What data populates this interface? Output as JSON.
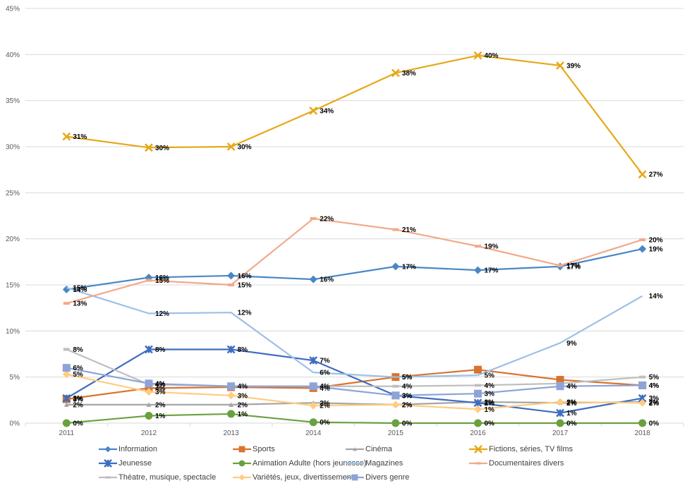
{
  "chart_data": {
    "type": "line",
    "title": "",
    "xlabel": "",
    "ylabel": "",
    "categories": [
      "2011",
      "2012",
      "2013",
      "2014",
      "2015",
      "2016",
      "2017",
      "2018"
    ],
    "ylim": [
      0,
      45
    ],
    "y_ticks": [
      0,
      5,
      10,
      15,
      20,
      25,
      30,
      35,
      40,
      45
    ],
    "y_tick_labels": [
      "0%",
      "5%",
      "10%",
      "15%",
      "20%",
      "25%",
      "30%",
      "35%",
      "40%",
      "45%"
    ],
    "value_format": "percent",
    "grid": true,
    "legend_position": "bottom",
    "series": [
      {
        "name": "Information",
        "color": "#4A86C5",
        "marker": "diamond",
        "values": [
          14.5,
          15.8,
          16.0,
          15.6,
          17.0,
          16.6,
          17.0,
          18.9
        ],
        "labels": [
          "14%",
          "16%",
          "16%",
          "16%",
          "17%",
          "17%",
          "17%",
          "19%"
        ]
      },
      {
        "name": "Sports",
        "color": "#D9722E",
        "marker": "square",
        "values": [
          2.6,
          3.8,
          3.9,
          3.8,
          5.0,
          5.8,
          4.7,
          4.1
        ],
        "labels": [
          "3%",
          "4%",
          "",
          "4%",
          "5%",
          "",
          "",
          "4%"
        ]
      },
      {
        "name": "Cinéma",
        "color": "#A5A5A5",
        "marker": "triangle",
        "values": [
          2.0,
          2.0,
          2.0,
          2.2,
          2.0,
          2.3,
          2.2,
          2.3
        ],
        "labels": [
          "2%",
          "2%",
          "2%",
          "2%",
          "2%",
          "2%",
          "2%",
          "2%"
        ]
      },
      {
        "name": "Fictions, séries, TV films",
        "color": "#E6A817",
        "marker": "x",
        "values": [
          31.1,
          29.9,
          30.0,
          33.9,
          38.0,
          39.9,
          38.8,
          27.0
        ],
        "labels": [
          "31%",
          "30%",
          "30%",
          "34%",
          "38%",
          "40%",
          "39%",
          "27%"
        ]
      },
      {
        "name": "Jeunesse",
        "color": "#3E6DBF",
        "marker": "star",
        "values": [
          2.7,
          8.0,
          8.0,
          6.8,
          3.0,
          2.2,
          1.1,
          2.7
        ],
        "labels": [
          "3%",
          "8%",
          "8%",
          "7%",
          "3%",
          "2%",
          "1%",
          "3%"
        ]
      },
      {
        "name": "Animation Adulte (hors jeunesse)",
        "color": "#6AA13F",
        "marker": "circle",
        "values": [
          0.0,
          0.8,
          1.0,
          0.1,
          0.0,
          0.0,
          0.0,
          0.0
        ],
        "labels": [
          "0%",
          "1%",
          "1%",
          "0%",
          "0%",
          "0%",
          "0%",
          "0%"
        ]
      },
      {
        "name": "Magazines",
        "color": "#9DC0E6",
        "marker": "none",
        "values": [
          14.7,
          11.9,
          12.0,
          5.5,
          5.0,
          5.2,
          8.7,
          13.8
        ],
        "labels": [
          "15%",
          "12%",
          "12%",
          "6%",
          "5%",
          "5%",
          "9%",
          "14%"
        ]
      },
      {
        "name": "Documentaires divers",
        "color": "#F2A98A",
        "marker": "dash",
        "values": [
          13.0,
          15.5,
          15.0,
          22.2,
          21.0,
          19.2,
          17.1,
          19.9
        ],
        "labels": [
          "13%",
          "15%",
          "15%",
          "22%",
          "21%",
          "19%",
          "17%",
          "20%"
        ]
      },
      {
        "name": "Théatre, musique, spectacle",
        "color": "#BFBFBF",
        "marker": "dash",
        "values": [
          8.0,
          4.2,
          4.0,
          4.0,
          4.0,
          4.1,
          4.3,
          5.0
        ],
        "labels": [
          "8%",
          "4%",
          "",
          "",
          "4%",
          "4%",
          "",
          "5%"
        ]
      },
      {
        "name": "Variétés, jeux, divertissements",
        "color": "#FFCC80",
        "marker": "diamond",
        "values": [
          5.3,
          3.4,
          3.0,
          1.9,
          2.0,
          1.5,
          2.3,
          2.2
        ],
        "labels": [
          "5%",
          "3%",
          "3%",
          "2%",
          "2%",
          "1%",
          "2%",
          "2%"
        ]
      },
      {
        "name": "Divers genre",
        "color": "#8EA4D8",
        "marker": "square",
        "values": [
          6.0,
          4.3,
          4.0,
          4.0,
          3.0,
          3.2,
          4.0,
          4.1
        ],
        "labels": [
          "6%",
          "4%",
          "4%",
          "4%",
          "3%",
          "3%",
          "4%",
          "4%"
        ]
      }
    ]
  }
}
